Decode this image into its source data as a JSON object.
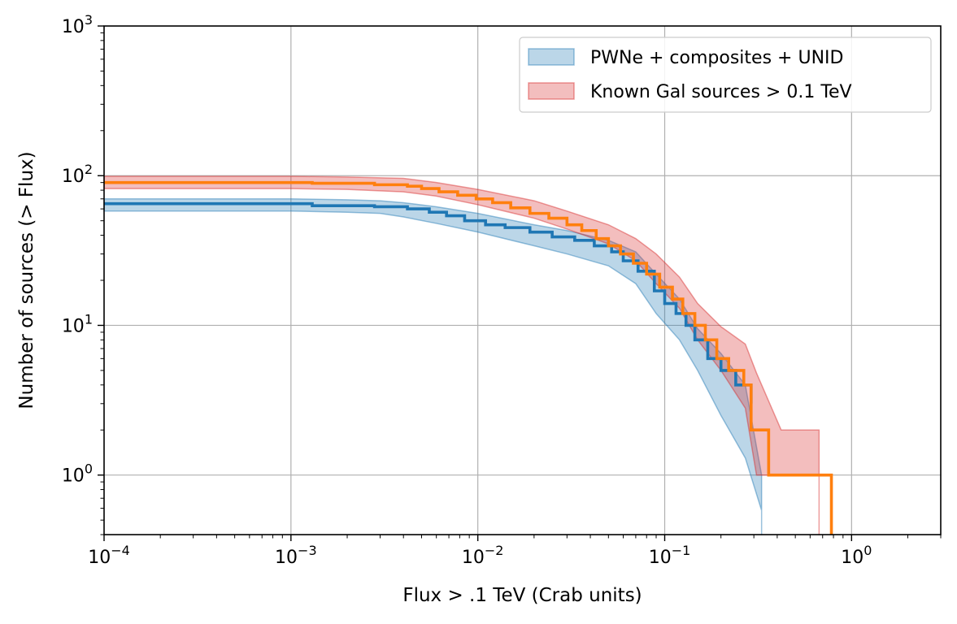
{
  "chart_data": {
    "type": "line",
    "xlabel": "Flux > .1 TeV (Crab units)",
    "ylabel": "Number of sources (> Flux)",
    "xscale": "log",
    "yscale": "log",
    "xlim": [
      0.0001,
      3.0
    ],
    "ylim": [
      0.4,
      1000
    ],
    "grid": true,
    "legend_position": "top-right",
    "x_ticks": [
      {
        "value": 0.0001,
        "base": "10",
        "exp": "−4"
      },
      {
        "value": 0.001,
        "base": "10",
        "exp": "−3"
      },
      {
        "value": 0.01,
        "base": "10",
        "exp": "−2"
      },
      {
        "value": 0.1,
        "base": "10",
        "exp": "−1"
      },
      {
        "value": 1,
        "base": "10",
        "exp": "0"
      }
    ],
    "y_ticks": [
      {
        "value": 1,
        "base": "10",
        "exp": "0"
      },
      {
        "value": 10,
        "base": "10",
        "exp": "1"
      },
      {
        "value": 100,
        "base": "10",
        "exp": "2"
      },
      {
        "value": 1000,
        "base": "10",
        "exp": "3"
      }
    ],
    "series": [
      {
        "name": "PWNe + composites + UNID",
        "line_color": "#1f77b4",
        "band_color": "#1f77b4",
        "step_x": [
          0.0001,
          0.0013,
          0.0028,
          0.0042,
          0.0055,
          0.0068,
          0.0085,
          0.011,
          0.014,
          0.019,
          0.025,
          0.033,
          0.042,
          0.052,
          0.06,
          0.072,
          0.088,
          0.1,
          0.115,
          0.13,
          0.145,
          0.17,
          0.2,
          0.24,
          0.29
        ],
        "step_y": [
          65,
          63,
          62,
          60,
          57,
          54,
          50,
          47,
          45,
          42,
          39,
          37,
          34,
          31,
          27,
          23,
          17,
          14,
          12,
          10,
          8,
          6,
          5,
          4,
          3
        ],
        "band_x": [
          0.0001,
          0.001,
          0.002,
          0.003,
          0.004,
          0.006,
          0.01,
          0.02,
          0.03,
          0.05,
          0.07,
          0.09,
          0.12,
          0.15,
          0.2,
          0.27,
          0.33
        ],
        "band_upper": [
          70,
          70,
          69,
          68,
          66,
          62,
          56,
          47,
          43,
          37,
          31,
          22,
          15,
          9.5,
          6.5,
          4.0,
          1.0
        ],
        "band_lower": [
          58,
          58,
          57,
          56,
          53,
          48,
          42,
          34,
          30,
          25,
          19,
          12,
          8.0,
          5.0,
          2.5,
          1.3,
          0.58
        ]
      },
      {
        "name": "Known Gal sources > 0.1 TeV",
        "line_color": "#ff7f0e",
        "band_color": "#d62728",
        "step_x": [
          0.0001,
          0.0013,
          0.0028,
          0.0042,
          0.005,
          0.0062,
          0.0078,
          0.0098,
          0.012,
          0.015,
          0.019,
          0.024,
          0.03,
          0.036,
          0.043,
          0.05,
          0.058,
          0.068,
          0.08,
          0.094,
          0.11,
          0.125,
          0.145,
          0.165,
          0.19,
          0.22,
          0.265,
          0.29,
          0.36,
          0.45,
          0.55,
          0.67
        ],
        "step_y": [
          90,
          89,
          87,
          85,
          82,
          78,
          74,
          70,
          66,
          61,
          56,
          52,
          47,
          43,
          38,
          34,
          30,
          26,
          22,
          18,
          15,
          12,
          10,
          8,
          6,
          5,
          4,
          2,
          1,
          1,
          1,
          1
        ],
        "end_x": 0.78,
        "band_x": [
          0.0001,
          0.001,
          0.002,
          0.004,
          0.006,
          0.01,
          0.02,
          0.03,
          0.05,
          0.07,
          0.09,
          0.12,
          0.15,
          0.2,
          0.27,
          0.31,
          0.42,
          0.67
        ],
        "band_upper": [
          99,
          99,
          98,
          96,
          90,
          81,
          68,
          58,
          47,
          38,
          30,
          21,
          14,
          9.8,
          7.5,
          4.8,
          2.0,
          2.0
        ],
        "band_lower": [
          82,
          82,
          81,
          78,
          73,
          64,
          52,
          44,
          35,
          27,
          19,
          13,
          8.0,
          5.0,
          2.8,
          1.0,
          1.0,
          1.0
        ]
      }
    ]
  },
  "legend": {
    "items": [
      {
        "label": "PWNe + composites + UNID"
      },
      {
        "label": "Known Gal sources > 0.1 TeV"
      }
    ]
  }
}
